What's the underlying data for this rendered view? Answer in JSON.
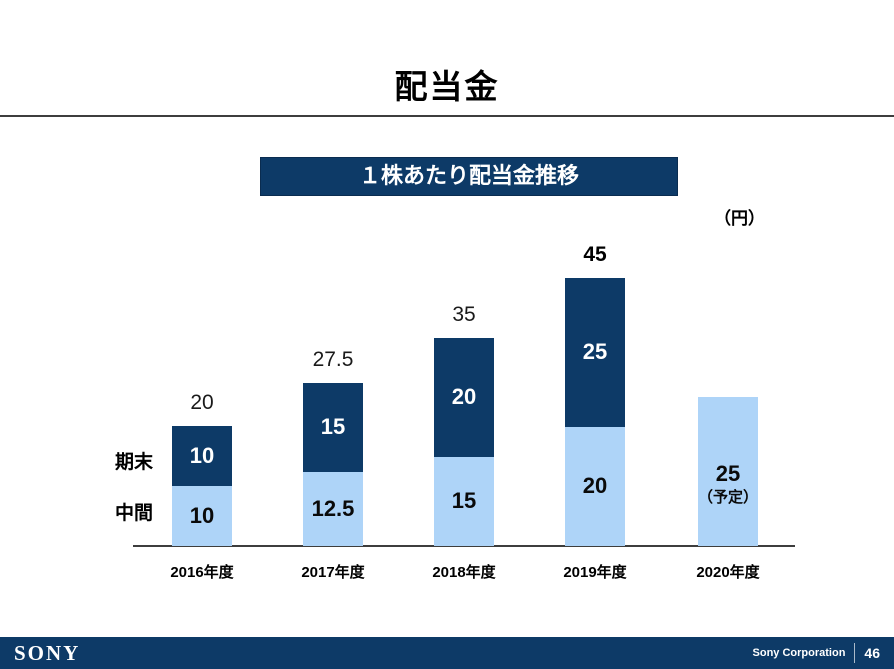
{
  "title": "配当金",
  "colors": {
    "navy": "#0D3A67",
    "light_blue": "#AED4F8"
  },
  "legend": {
    "yearend": "期末",
    "interim": "中間"
  },
  "footer": {
    "logo": "SONY",
    "company": "Sony Corporation",
    "page_number": "46"
  },
  "chart_data": {
    "type": "bar",
    "subtype": "stacked",
    "title": "１株あたり配当金推移",
    "unit_label": "（円）",
    "xlabel": "",
    "ylabel": "円",
    "ylim": [
      0,
      50
    ],
    "grid": false,
    "legend_position": "left-of-first-bar",
    "categories": [
      "2016年度",
      "2017年度",
      "2018年度",
      "2019年度",
      "2020年度"
    ],
    "series": [
      {
        "name": "中間",
        "color_key": "light_blue",
        "values": [
          10,
          12.5,
          15,
          20,
          25
        ]
      },
      {
        "name": "期末",
        "color_key": "navy",
        "values": [
          10,
          15,
          20,
          25,
          null
        ]
      }
    ],
    "totals": [
      20,
      27.5,
      35,
      45,
      null
    ],
    "bars": [
      {
        "category": "2016年度",
        "interim": 10,
        "yearend": 10,
        "total": 20,
        "total_bold": false,
        "interim_sublabel": null
      },
      {
        "category": "2017年度",
        "interim": 12.5,
        "yearend": 15,
        "total": 27.5,
        "total_bold": false,
        "interim_sublabel": null
      },
      {
        "category": "2018年度",
        "interim": 15,
        "yearend": 20,
        "total": 35,
        "total_bold": false,
        "interim_sublabel": null
      },
      {
        "category": "2019年度",
        "interim": 20,
        "yearend": 25,
        "total": 45,
        "total_bold": true,
        "interim_sublabel": null
      },
      {
        "category": "2020年度",
        "interim": 25,
        "yearend": null,
        "total": null,
        "total_bold": false,
        "interim_sublabel": "（予定）"
      }
    ],
    "annotations": [
      "2020年度の25円は予定"
    ]
  }
}
